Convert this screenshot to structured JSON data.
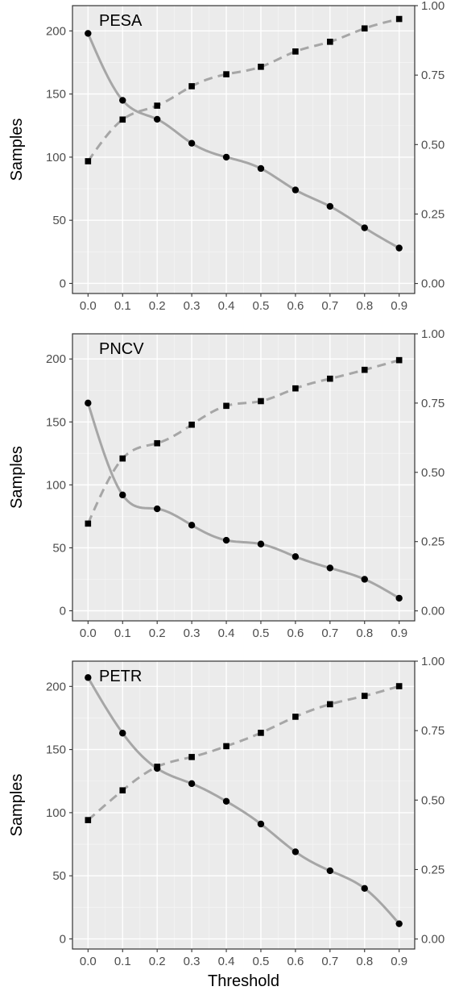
{
  "figure": {
    "xlabel": "Threshold"
  },
  "chart_data": [
    {
      "type": "line",
      "title": "PESA",
      "ylabel": "Samples",
      "x": [
        0.0,
        0.1,
        0.2,
        0.3,
        0.4,
        0.5,
        0.6,
        0.7,
        0.8,
        0.9
      ],
      "x_tick_labels": [
        "0.0",
        "0.1",
        "0.2",
        "0.3",
        "0.4",
        "0.5",
        "0.6",
        "0.7",
        "0.8",
        "0.9"
      ],
      "xlim": [
        -0.045,
        0.945
      ],
      "ylim": [
        -8,
        220
      ],
      "y_ticks": [
        0,
        50,
        100,
        150,
        200
      ],
      "y2lim": [
        -0.036,
        1.0
      ],
      "y2_ticks": [
        "0.00",
        "0.25",
        "0.50",
        "0.75",
        "1.00"
      ],
      "grid": true,
      "series": [
        {
          "axis": "left",
          "marker": "circle",
          "line": "solid",
          "values": [
            198,
            145,
            130,
            111,
            100,
            91,
            74,
            61,
            44,
            28
          ]
        },
        {
          "axis": "right",
          "marker": "square",
          "line": "dashed",
          "values": [
            0.44,
            0.59,
            0.64,
            0.71,
            0.753,
            0.78,
            0.835,
            0.87,
            0.918,
            0.952
          ]
        }
      ]
    },
    {
      "type": "line",
      "title": "PNCV",
      "ylabel": "Samples",
      "x": [
        0.0,
        0.1,
        0.2,
        0.3,
        0.4,
        0.5,
        0.6,
        0.7,
        0.8,
        0.9
      ],
      "x_tick_labels": [
        "0.0",
        "0.1",
        "0.2",
        "0.3",
        "0.4",
        "0.5",
        "0.6",
        "0.7",
        "0.8",
        "0.9"
      ],
      "xlim": [
        -0.045,
        0.945
      ],
      "ylim": [
        -8,
        220
      ],
      "y_ticks": [
        0,
        50,
        100,
        150,
        200
      ],
      "y2lim": [
        -0.036,
        1.0
      ],
      "y2_ticks": [
        "0.00",
        "0.25",
        "0.50",
        "0.75",
        "1.00"
      ],
      "grid": true,
      "series": [
        {
          "axis": "left",
          "marker": "circle",
          "line": "solid",
          "values": [
            165,
            92,
            81,
            68,
            56,
            53,
            43,
            34,
            25,
            10
          ]
        },
        {
          "axis": "right",
          "marker": "square",
          "line": "dashed",
          "values": [
            0.315,
            0.55,
            0.605,
            0.672,
            0.74,
            0.757,
            0.803,
            0.838,
            0.87,
            0.905
          ]
        }
      ]
    },
    {
      "type": "line",
      "title": "PETR",
      "ylabel": "Samples",
      "x": [
        0.0,
        0.1,
        0.2,
        0.3,
        0.4,
        0.5,
        0.6,
        0.7,
        0.8,
        0.9
      ],
      "x_tick_labels": [
        "0.0",
        "0.1",
        "0.2",
        "0.3",
        "0.4",
        "0.5",
        "0.6",
        "0.7",
        "0.8",
        "0.9"
      ],
      "xlim": [
        -0.045,
        0.945
      ],
      "ylim": [
        -8,
        220
      ],
      "y_ticks": [
        0,
        50,
        100,
        150,
        200
      ],
      "y2lim": [
        -0.036,
        1.0
      ],
      "y2_ticks": [
        "0.00",
        "0.25",
        "0.50",
        "0.75",
        "1.00"
      ],
      "grid": true,
      "series": [
        {
          "axis": "left",
          "marker": "circle",
          "line": "solid",
          "values": [
            207,
            163,
            135,
            123,
            109,
            91,
            69,
            54,
            40,
            12
          ]
        },
        {
          "axis": "right",
          "marker": "square",
          "line": "dashed",
          "values": [
            0.428,
            0.535,
            0.62,
            0.655,
            0.694,
            0.742,
            0.8,
            0.845,
            0.875,
            0.91
          ]
        }
      ]
    }
  ],
  "colors": {
    "panel_background": "#ebebeb",
    "grid_major": "#ffffff",
    "grid_minor": "#f4f4f4",
    "line": "#a6a6a6",
    "marker": "#000000",
    "axis": "#333333"
  }
}
